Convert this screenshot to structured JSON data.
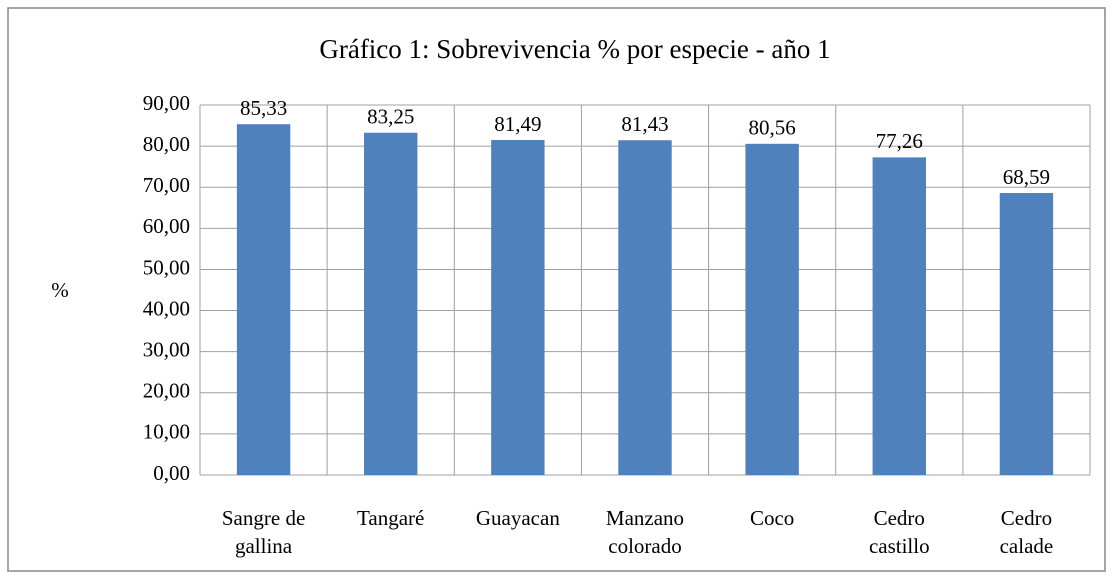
{
  "chart_data": {
    "type": "bar",
    "title": "Gráfico 1: Sobrevivencia % por especie - año 1",
    "y_label": "%",
    "categories": [
      "Sangre de gallina",
      "Tangaré",
      "Guayacan",
      "Manzano colorado",
      "Coco",
      "Cedro castillo",
      "Cedro calade"
    ],
    "values": [
      85.33,
      83.25,
      81.49,
      81.43,
      80.56,
      77.26,
      68.59
    ],
    "value_labels": [
      "85,33",
      "83,25",
      "81,49",
      "81,43",
      "80,56",
      "77,26",
      "68,59"
    ],
    "color": "#4f81bd",
    "ylim": [
      0,
      90
    ],
    "yticks": [
      {
        "value": 0,
        "label": "0,00"
      },
      {
        "value": 10,
        "label": "10,00"
      },
      {
        "value": 20,
        "label": "20,00"
      },
      {
        "value": 30,
        "label": "30,00"
      },
      {
        "value": 40,
        "label": "40,00"
      },
      {
        "value": 50,
        "label": "50,00"
      },
      {
        "value": 60,
        "label": "60,00"
      },
      {
        "value": 70,
        "label": "70,00"
      },
      {
        "value": 80,
        "label": "80,00"
      },
      {
        "value": 90,
        "label": "90,00"
      }
    ],
    "grid": true
  }
}
